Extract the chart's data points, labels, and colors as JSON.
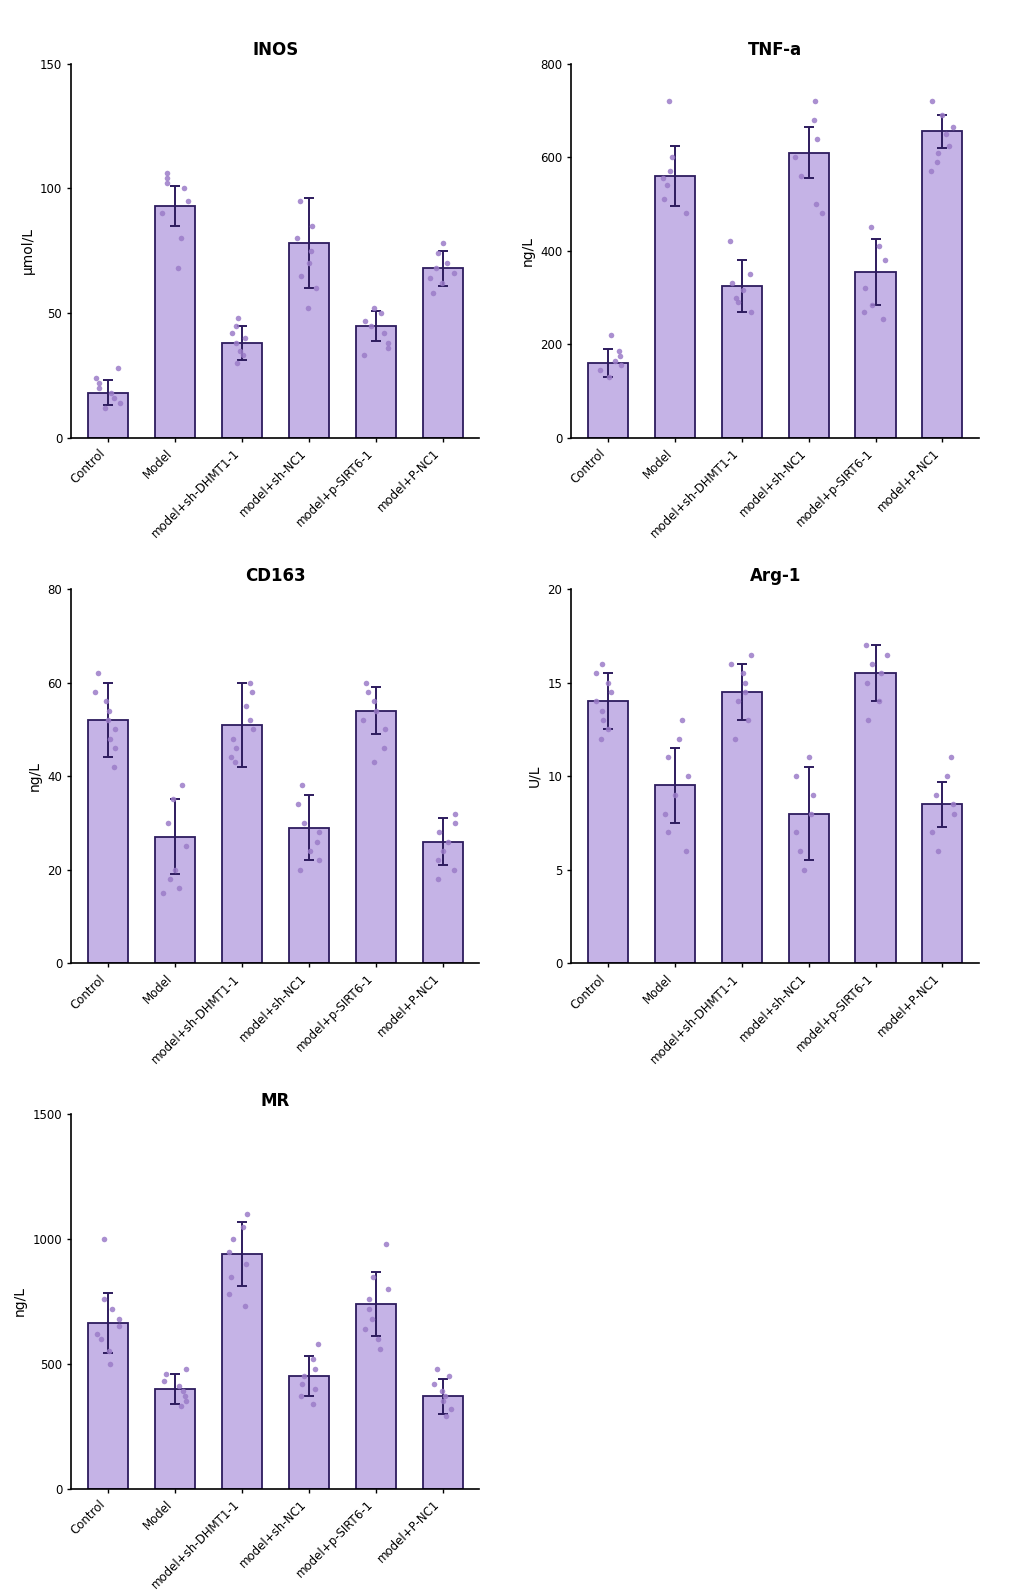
{
  "categories": [
    "Control",
    "Model",
    "model+sh-DHMT1-1",
    "model+sh-NC1",
    "model+p-SIRT6-1",
    "model+P-NC1"
  ],
  "plots": [
    {
      "title": "INOS",
      "ylabel": "μmol/L",
      "ylim": [
        0,
        150
      ],
      "yticks": [
        0,
        50,
        100,
        150
      ],
      "means": [
        18,
        93,
        38,
        78,
        45,
        68
      ],
      "sds": [
        5,
        8,
        7,
        18,
        6,
        7
      ],
      "dots": [
        [
          12,
          14,
          16,
          18,
          20,
          22,
          24,
          28
        ],
        [
          68,
          80,
          90,
          95,
          100,
          102,
          104,
          106
        ],
        [
          30,
          33,
          35,
          38,
          40,
          42,
          45,
          48
        ],
        [
          52,
          60,
          65,
          70,
          75,
          80,
          85,
          95
        ],
        [
          33,
          36,
          38,
          42,
          45,
          47,
          50,
          52
        ],
        [
          58,
          62,
          64,
          66,
          68,
          70,
          74,
          78
        ]
      ]
    },
    {
      "title": "TNF-a",
      "ylabel": "ng/L",
      "ylim": [
        0,
        800
      ],
      "yticks": [
        0,
        200,
        400,
        600,
        800
      ],
      "means": [
        160,
        560,
        325,
        610,
        355,
        655
      ],
      "sds": [
        30,
        65,
        55,
        55,
        70,
        35
      ],
      "dots": [
        [
          130,
          145,
          155,
          165,
          175,
          185,
          220
        ],
        [
          480,
          510,
          540,
          555,
          570,
          600,
          720
        ],
        [
          270,
          290,
          300,
          315,
          330,
          350,
          420
        ],
        [
          480,
          500,
          560,
          600,
          640,
          680,
          720
        ],
        [
          255,
          270,
          285,
          320,
          380,
          410,
          450
        ],
        [
          570,
          590,
          610,
          625,
          650,
          665,
          690,
          720
        ]
      ]
    },
    {
      "title": "CD163",
      "ylabel": "ng/L",
      "ylim": [
        0,
        80
      ],
      "yticks": [
        0,
        20,
        40,
        60,
        80
      ],
      "means": [
        52,
        27,
        51,
        29,
        54,
        26
      ],
      "sds": [
        8,
        8,
        9,
        7,
        5,
        5
      ],
      "dots": [
        [
          42,
          46,
          48,
          50,
          52,
          54,
          56,
          58,
          62
        ],
        [
          15,
          16,
          18,
          20,
          25,
          30,
          35,
          38
        ],
        [
          43,
          44,
          46,
          48,
          50,
          52,
          55,
          58,
          60
        ],
        [
          20,
          22,
          24,
          26,
          28,
          30,
          34,
          38
        ],
        [
          43,
          46,
          50,
          52,
          54,
          56,
          58,
          60
        ],
        [
          18,
          20,
          22,
          24,
          26,
          28,
          30,
          32
        ]
      ]
    },
    {
      "title": "Arg-1",
      "ylabel": "U/L",
      "ylim": [
        0,
        20
      ],
      "yticks": [
        0,
        5,
        10,
        15,
        20
      ],
      "means": [
        14,
        9.5,
        14.5,
        8,
        15.5,
        8.5
      ],
      "sds": [
        1.5,
        2.0,
        1.5,
        2.5,
        1.5,
        1.2
      ],
      "dots": [
        [
          12,
          12.5,
          13,
          13.5,
          14,
          14.5,
          15,
          15.5,
          16
        ],
        [
          6,
          7,
          8,
          9,
          10,
          11,
          12,
          13
        ],
        [
          12,
          13,
          14,
          14.5,
          15,
          15.5,
          16,
          16.5
        ],
        [
          5,
          6,
          7,
          8,
          9,
          10,
          11
        ],
        [
          13,
          14,
          15,
          15.5,
          16,
          16.5,
          17
        ],
        [
          6,
          7,
          8,
          8.5,
          9,
          10,
          11
        ]
      ]
    },
    {
      "title": "MR",
      "ylabel": "ng/L",
      "ylim": [
        0,
        1500
      ],
      "yticks": [
        0,
        500,
        1000,
        1500
      ],
      "means": [
        665,
        400,
        940,
        450,
        740,
        370
      ],
      "sds": [
        120,
        60,
        130,
        80,
        130,
        70
      ],
      "dots": [
        [
          500,
          550,
          600,
          620,
          650,
          680,
          720,
          760,
          1000
        ],
        [
          330,
          350,
          370,
          390,
          410,
          430,
          460,
          480
        ],
        [
          730,
          780,
          850,
          900,
          950,
          1000,
          1050,
          1100
        ],
        [
          340,
          370,
          400,
          420,
          450,
          480,
          520,
          580
        ],
        [
          560,
          600,
          640,
          680,
          720,
          760,
          800,
          850,
          980
        ],
        [
          290,
          320,
          350,
          370,
          390,
          420,
          450,
          480
        ]
      ]
    }
  ],
  "bar_facecolor": "#c5b3e6",
  "bar_edgecolor": "#2d1b5e",
  "dot_color": "#9b7cc8",
  "errorbar_color": "#2d1b5e",
  "background_color": "#ffffff",
  "title_fontsize": 12,
  "label_fontsize": 10,
  "tick_fontsize": 8.5,
  "bar_width": 0.6
}
